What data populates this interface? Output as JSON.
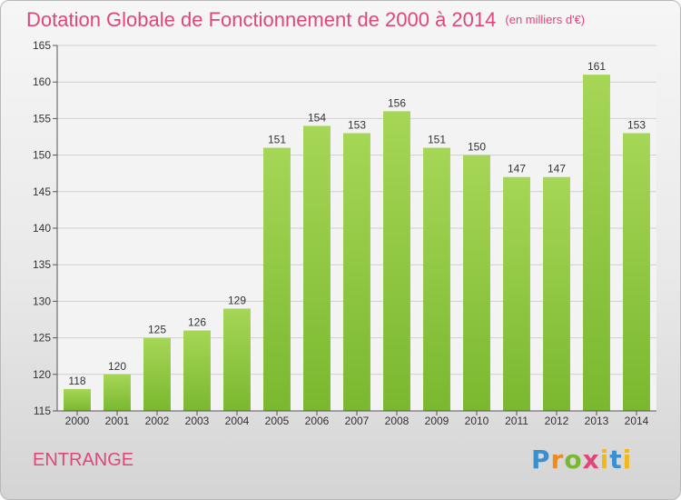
{
  "chart_data": {
    "type": "bar",
    "title": "Dotation Globale de Fonctionnement de 2000 à 2014",
    "subtitle": "(en milliers d'€)",
    "categories": [
      "2000",
      "2001",
      "2002",
      "2003",
      "2004",
      "2005",
      "2006",
      "2007",
      "2008",
      "2009",
      "2010",
      "2011",
      "2012",
      "2013",
      "2014"
    ],
    "values": [
      118,
      120,
      125,
      126,
      129,
      151,
      154,
      153,
      156,
      151,
      150,
      147,
      147,
      161,
      153
    ],
    "ylim": [
      115,
      165
    ],
    "yticks": [
      115,
      120,
      125,
      130,
      135,
      140,
      145,
      150,
      155,
      160,
      165
    ],
    "grid": true,
    "bar_color": "#7ab82f",
    "bar_color_light": "#a6d656"
  },
  "commune": "ENTRANGE",
  "logo": {
    "letters": [
      "P",
      "r",
      "o",
      "x",
      "i",
      "t",
      "i"
    ]
  },
  "colors": {
    "title": "#e0457b",
    "grid": "#cfcfcf"
  }
}
